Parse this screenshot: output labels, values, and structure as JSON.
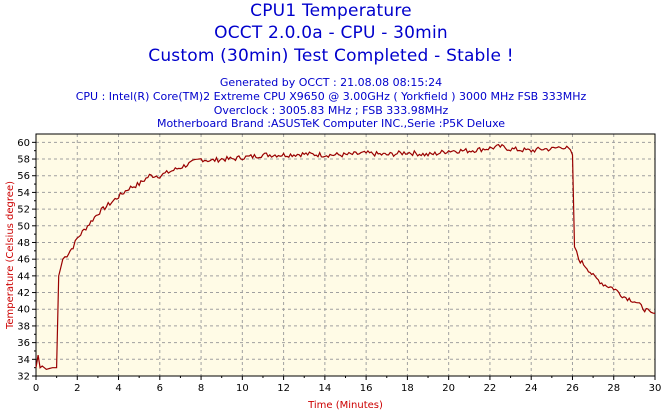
{
  "header": {
    "line1": "CPU1 Temperature",
    "line2": "OCCT 2.0.0a - CPU - 30min",
    "line3": "Custom (30min) Test Completed - Stable !",
    "info1": "Generated by OCCT : 21.08.08 08:15:24",
    "info2": "CPU : Intel(R) Core(TM)2 Extreme CPU X9650 @ 3.00GHz ( Yorkfield ) 3000 MHz FSB 333MHz",
    "info3": "Overclock : 3005.83 MHz ; FSB 333.98MHz",
    "info4": "Motherboard Brand :ASUSTeK Computer INC.,Serie :P5K Deluxe"
  },
  "colors": {
    "title": "#0000cc",
    "line": "#990000",
    "plot_bg": "#fffbe6",
    "grid": "#a0a0a0",
    "axis_label": "#cc0000"
  },
  "chart_data": {
    "type": "line",
    "title": "CPU1 Temperature",
    "xlabel": "Time (Minutes)",
    "ylabel": "Temperature (Celsius degree)",
    "xlim": [
      0,
      30
    ],
    "ylim": [
      32,
      61
    ],
    "grid": true,
    "x_ticks": [
      0,
      2,
      4,
      6,
      8,
      10,
      12,
      14,
      16,
      18,
      20,
      22,
      24,
      26,
      28,
      30
    ],
    "y_ticks": [
      32,
      34,
      36,
      38,
      40,
      42,
      44,
      46,
      48,
      50,
      52,
      54,
      56,
      58,
      60
    ],
    "series": [
      {
        "name": "CPU1 Temperature",
        "x": [
          0,
          0.1,
          0.2,
          0.3,
          0.5,
          0.8,
          1.0,
          1.1,
          1.2,
          1.3,
          1.5,
          1.8,
          2.0,
          2.5,
          3.0,
          3.5,
          4.0,
          4.5,
          5.0,
          5.5,
          6.0,
          6.5,
          7.0,
          7.5,
          8.0,
          8.5,
          9.0,
          9.5,
          10.0,
          10.5,
          11.0,
          12.0,
          13.0,
          14.0,
          15.0,
          16.0,
          17.0,
          18.0,
          19.0,
          19.5,
          20.0,
          21.0,
          22.0,
          22.5,
          23.0,
          24.0,
          24.5,
          25.0,
          25.5,
          25.8,
          26.0,
          26.1,
          26.3,
          26.7,
          27.0,
          27.5,
          28.0,
          28.5,
          29.0,
          29.5,
          29.8,
          30.0
        ],
        "y": [
          33.0,
          34.5,
          33.0,
          33.2,
          32.8,
          33.0,
          33.0,
          44.0,
          45.0,
          46.0,
          46.5,
          47.5,
          48.5,
          50.0,
          51.5,
          52.5,
          53.5,
          54.5,
          55.0,
          56.0,
          56.0,
          56.5,
          57.0,
          57.5,
          58.0,
          57.8,
          58.0,
          58.0,
          58.2,
          58.3,
          58.5,
          58.5,
          58.6,
          58.5,
          58.5,
          58.7,
          58.5,
          58.8,
          58.5,
          58.7,
          59.0,
          59.0,
          59.3,
          59.5,
          59.2,
          59.0,
          59.2,
          59.2,
          59.5,
          59.2,
          58.5,
          47.5,
          46.0,
          45.0,
          44.0,
          43.0,
          42.5,
          41.5,
          41.0,
          40.0,
          39.5,
          39.5
        ]
      }
    ]
  }
}
